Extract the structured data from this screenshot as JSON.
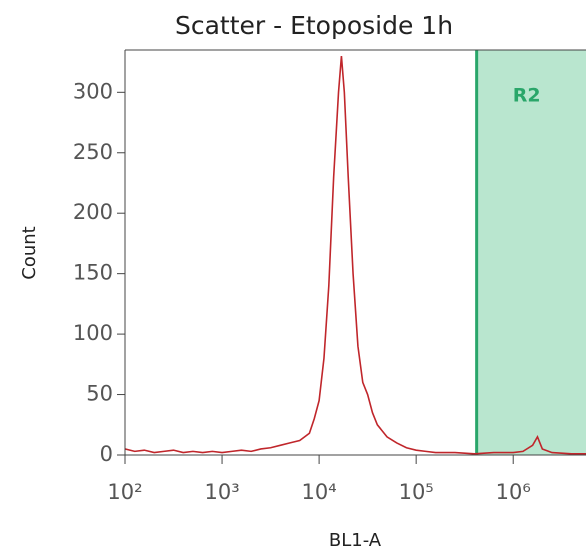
{
  "chart_data": {
    "type": "line",
    "title": "Scatter - Etoposide 1h",
    "x_label": "BL1-A",
    "y_label": "Count",
    "x_scale": "log",
    "xlim": [
      100,
      5623413
    ],
    "ylim": [
      0,
      335
    ],
    "xticks": [
      {
        "value": 100,
        "label": "10²"
      },
      {
        "value": 1000,
        "label": "10³"
      },
      {
        "value": 10000,
        "label": "10⁴"
      },
      {
        "value": 100000,
        "label": "10⁵"
      },
      {
        "value": 1000000,
        "label": "10⁶"
      }
    ],
    "yticks": [
      0,
      50,
      100,
      150,
      200,
      250,
      300
    ],
    "region": {
      "label": "R2",
      "start": 420000,
      "color": "#2aa66a",
      "fill": "#b9e6cf"
    },
    "series": [
      {
        "color": "#c0262b",
        "x": [
          100,
          126,
          158,
          200,
          251,
          316,
          398,
          501,
          631,
          794,
          1000,
          1259,
          1585,
          1995,
          2512,
          3162,
          3981,
          5012,
          6310,
          7943,
          8913,
          10000,
          11220,
          12589,
          14125,
          15849,
          16982,
          18197,
          19953,
          22387,
          25119,
          28184,
          31623,
          35481,
          39811,
          50119,
          63096,
          79433,
          100000,
          125893,
          158489,
          251189,
          398107,
          630957,
          1000000,
          1258925,
          1584893,
          1778279,
          1995262,
          2511886,
          3981072,
          5623413
        ],
        "values": [
          5,
          3,
          4,
          2,
          3,
          4,
          2,
          3,
          2,
          3,
          2,
          3,
          4,
          3,
          5,
          6,
          8,
          10,
          12,
          18,
          30,
          45,
          80,
          140,
          230,
          300,
          330,
          300,
          230,
          150,
          90,
          60,
          50,
          35,
          25,
          15,
          10,
          6,
          4,
          3,
          2,
          2,
          1,
          2,
          2,
          3,
          8,
          15,
          5,
          2,
          1,
          1
        ]
      }
    ]
  }
}
